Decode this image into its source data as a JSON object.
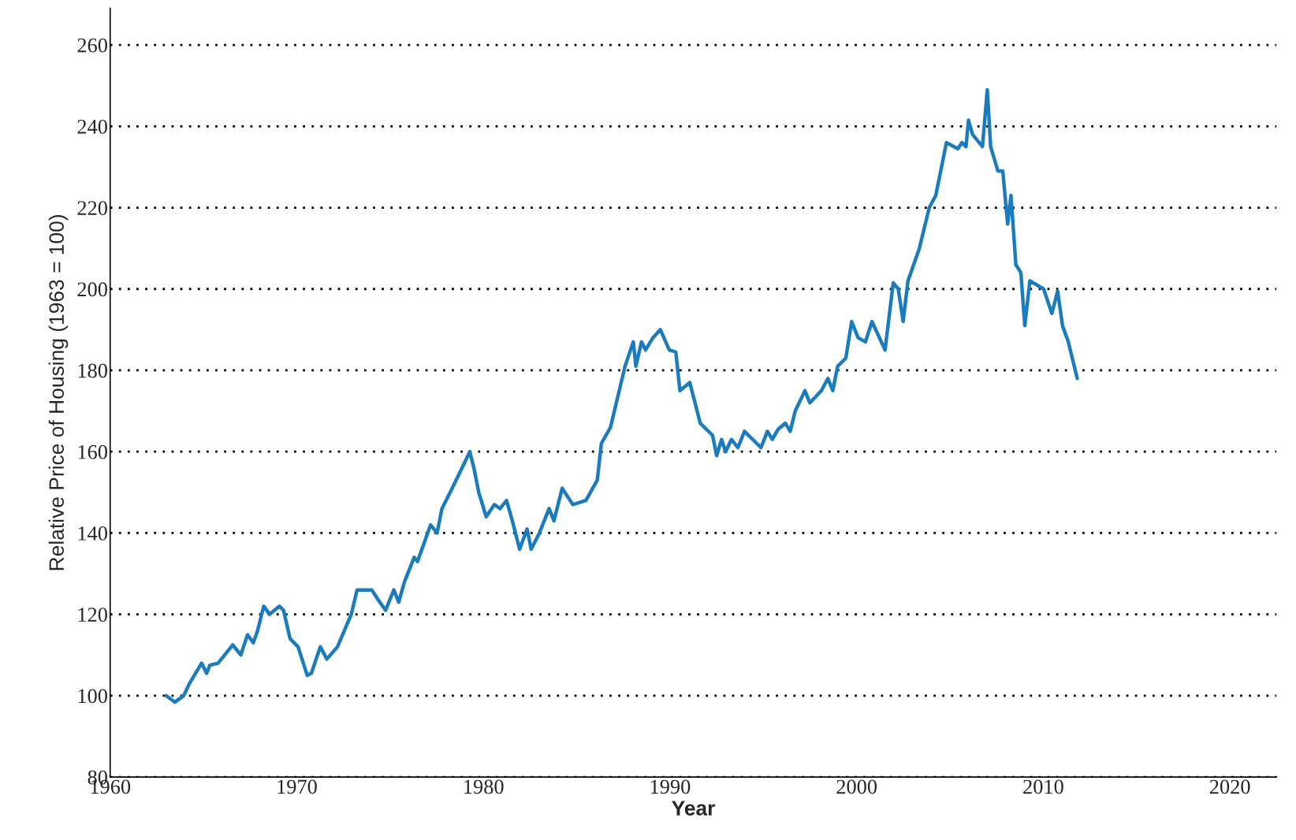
{
  "chart_data": {
    "type": "line",
    "xlabel": "Year",
    "ylabel": "Relative Price of Housing (1963 = 100)",
    "xlim": [
      1960,
      2022.5
    ],
    "xticks": [
      1960,
      1970,
      1980,
      1990,
      2000,
      2010,
      2020
    ],
    "ylim": [
      80,
      269
    ],
    "yticks": [
      80,
      100,
      120,
      140,
      160,
      180,
      200,
      220,
      240,
      260
    ],
    "grid": "y",
    "legend": false,
    "line_style": "solid",
    "marker": "none",
    "series": [
      {
        "color": "#1a7bbf",
        "x": [
          1963.0,
          1963.46,
          1963.94,
          1964.25,
          1964.9,
          1965.17,
          1965.34,
          1965.78,
          1966.57,
          1967.0,
          1967.36,
          1967.67,
          1967.9,
          1968.23,
          1968.54,
          1969.07,
          1969.29,
          1969.64,
          1970.07,
          1970.56,
          1970.78,
          1971.26,
          1971.61,
          1972.18,
          1972.92,
          1973.23,
          1974.02,
          1974.37,
          1974.76,
          1975.2,
          1975.46,
          1975.77,
          1976.29,
          1976.47,
          1976.78,
          1977.17,
          1977.52,
          1977.78,
          1978.22,
          1978.75,
          1979.27,
          1979.49,
          1979.75,
          1980.15,
          1980.59,
          1980.89,
          1981.24,
          1981.55,
          1981.94,
          1982.34,
          1982.56,
          1983.0,
          1983.52,
          1983.78,
          1984.22,
          1984.79,
          1985.49,
          1986.1,
          1986.32,
          1986.81,
          1987.59,
          1988.03,
          1988.17,
          1988.47,
          1988.69,
          1989.08,
          1989.48,
          1989.96,
          1990.31,
          1990.53,
          1991.06,
          1991.62,
          1992.28,
          1992.5,
          1992.76,
          1992.98,
          1993.29,
          1993.64,
          1993.99,
          1994.87,
          1995.22,
          1995.48,
          1995.79,
          1996.18,
          1996.44,
          1996.71,
          1997.23,
          1997.49,
          1998.11,
          1998.46,
          1998.72,
          1998.98,
          1999.42,
          1999.73,
          2000.08,
          2000.47,
          2000.82,
          2001.52,
          2001.96,
          2002.23,
          2002.49,
          2002.75,
          2003.36,
          2003.89,
          2004.24,
          2004.81,
          2005.42,
          2005.64,
          2005.86,
          2005.99,
          2006.21,
          2006.74,
          2007.0,
          2007.18,
          2007.57,
          2007.83,
          2008.09,
          2008.27,
          2008.53,
          2008.8,
          2009.01,
          2009.28,
          2010.02,
          2010.46,
          2010.77,
          2011.03,
          2011.34,
          2011.82
        ],
        "values": [
          100,
          98.4,
          100,
          103,
          108,
          105.5,
          107.5,
          108,
          112.5,
          110,
          115,
          113,
          116,
          122,
          120,
          122,
          121,
          114,
          112,
          105,
          105.5,
          112,
          109,
          112,
          120,
          126,
          126,
          123.5,
          121,
          126,
          123,
          128,
          134,
          133,
          137,
          142,
          140,
          146,
          150,
          155,
          160,
          156,
          150,
          144,
          147,
          146,
          148,
          143,
          136,
          141,
          136,
          140,
          146,
          143,
          151,
          147,
          148,
          153,
          162,
          166,
          181,
          187,
          181,
          187,
          185,
          188,
          190,
          185,
          184.5,
          175,
          177,
          167,
          164,
          159,
          163,
          160,
          163,
          161,
          165,
          161,
          165,
          163,
          165.5,
          167,
          165,
          170,
          175,
          172,
          175,
          178,
          175,
          181,
          183,
          192,
          188,
          187,
          192,
          185,
          201.5,
          200,
          192,
          202,
          210,
          220,
          223,
          236,
          234.5,
          236,
          235,
          241.5,
          238,
          235,
          249,
          235,
          229,
          229,
          216,
          223,
          206,
          204,
          191,
          202,
          200,
          194,
          199.5,
          191,
          187,
          178
        ]
      }
    ]
  }
}
